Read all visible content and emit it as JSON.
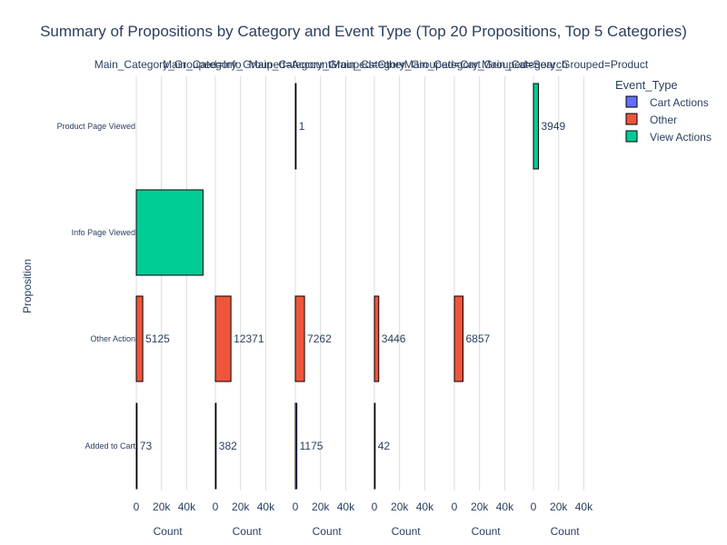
{
  "chart_data": {
    "type": "bar",
    "orientation": "horizontal",
    "title": "Summary of Propositions by Category and Event Type (Top 20 Propositions, Top 5 Categories)",
    "ylabel": "Proposition",
    "xlabel": "Count",
    "xlim": [
      0,
      50000
    ],
    "xticks": [
      0,
      20000,
      40000
    ],
    "xtick_labels": [
      "0",
      "20k",
      "40k"
    ],
    "grid": true,
    "legend": {
      "title": "Event_Type",
      "placement": "right"
    },
    "propositions": [
      "Product Page Viewed",
      "Info Page Viewed",
      "Other Action",
      "Added to Cart"
    ],
    "event_types": [
      {
        "name": "Cart Actions",
        "color": "#636efa"
      },
      {
        "name": "Other",
        "color": "#ef553b"
      },
      {
        "name": "View Actions",
        "color": "#00cc96"
      }
    ],
    "facets": [
      {
        "label": "Main_Category_Grouped=Info",
        "bars": [
          {
            "proposition": "Info Page Viewed",
            "event_type": "View Actions",
            "value": 53000,
            "label": ""
          },
          {
            "proposition": "Other Action",
            "event_type": "Other",
            "value": 5125,
            "label": "5125"
          },
          {
            "proposition": "Added to Cart",
            "event_type": "Cart Actions",
            "value": 73,
            "label": "73"
          }
        ]
      },
      {
        "label": "Main_Category_Grouped=Account",
        "bars": [
          {
            "proposition": "Other Action",
            "event_type": "Other",
            "value": 12371,
            "label": "12371"
          },
          {
            "proposition": "Added to Cart",
            "event_type": "Cart Actions",
            "value": 382,
            "label": "382"
          }
        ]
      },
      {
        "label": "Main_Category_Grouped=Other",
        "bars": [
          {
            "proposition": "Product Page Viewed",
            "event_type": "View Actions",
            "value": 1,
            "label": "1"
          },
          {
            "proposition": "Other Action",
            "event_type": "Other",
            "value": 7262,
            "label": "7262"
          },
          {
            "proposition": "Added to Cart",
            "event_type": "Cart Actions",
            "value": 1175,
            "label": "1175"
          }
        ]
      },
      {
        "label": "Main_Category_Grouped=Cart",
        "bars": [
          {
            "proposition": "Other Action",
            "event_type": "Other",
            "value": 3446,
            "label": "3446"
          },
          {
            "proposition": "Added to Cart",
            "event_type": "Cart Actions",
            "value": 42,
            "label": "42"
          }
        ]
      },
      {
        "label": "Main_Category_Grouped=Search",
        "bars": [
          {
            "proposition": "Other Action",
            "event_type": "Other",
            "value": 6857,
            "label": "6857"
          }
        ]
      },
      {
        "label": "Main_Category_Grouped=Product",
        "bars": [
          {
            "proposition": "Product Page Viewed",
            "event_type": "View Actions",
            "value": 3949,
            "label": "3949"
          }
        ]
      }
    ]
  }
}
